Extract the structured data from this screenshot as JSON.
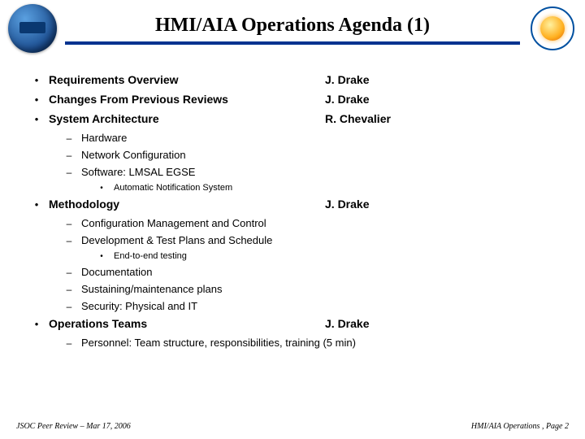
{
  "title": "HMI/AIA Operations Agenda (1)",
  "colors": {
    "underline": "#00338f",
    "background": "#ffffff",
    "text": "#000000"
  },
  "typography": {
    "title_fontsize": 24,
    "title_family": "Times New Roman",
    "body_family": "Arial",
    "l1_fontsize": 14,
    "l2_fontsize": 13,
    "l3_fontsize": 11,
    "footer_fontsize": 10
  },
  "items": [
    {
      "topic": "Requirements Overview",
      "presenter": "J. Drake"
    },
    {
      "topic": "Changes From Previous Reviews",
      "presenter": "J. Drake"
    },
    {
      "topic": "System Architecture",
      "presenter": "R. Chevalier"
    }
  ],
  "arch_sub": [
    "Hardware",
    "Network Configuration",
    "Software: LMSAL EGSE"
  ],
  "software_sub": "Automatic Notification System",
  "methodology": {
    "topic": "Methodology",
    "presenter": "J. Drake"
  },
  "methodology_sub1": [
    "Configuration Management and Control",
    "Development & Test Plans and Schedule"
  ],
  "methodology_sub1_sub": "End-to-end testing",
  "methodology_sub2": [
    "Documentation",
    "Sustaining/maintenance plans",
    "Security:  Physical and IT"
  ],
  "ops_teams": {
    "topic": "Operations Teams",
    "presenter": "J. Drake"
  },
  "ops_teams_sub": "Personnel:  Team structure, responsibilities, training (5 min)",
  "footer": {
    "left": "JSOC Peer Review – Mar 17, 2006",
    "right": "HMI/AIA Operations , Page 2"
  }
}
